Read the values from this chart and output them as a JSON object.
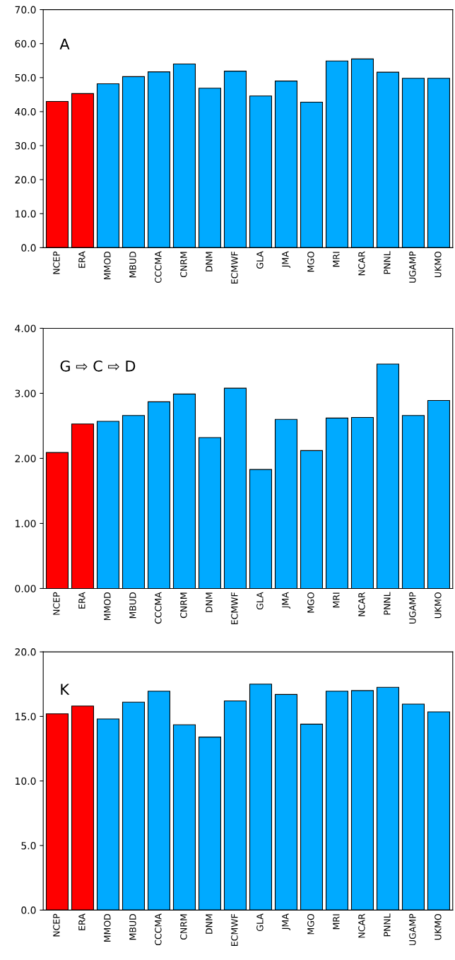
{
  "chart_data": [
    {
      "type": "bar",
      "categories": [
        "NCEP",
        "ERA",
        "MMOD",
        "MBUD",
        "CCCMA",
        "CNRM",
        "DNM",
        "ECMWF",
        "GLA",
        "JMA",
        "MGO",
        "MRI",
        "NCAR",
        "PNNL",
        "UGAMP",
        "UKMO"
      ],
      "values": [
        43.0,
        45.3,
        48.2,
        50.3,
        51.7,
        54.0,
        46.9,
        51.9,
        44.6,
        49.0,
        42.8,
        54.9,
        55.5,
        51.6,
        49.8,
        49.8
      ],
      "colors": [
        "#ff0000",
        "#ff0000",
        "#00aaff",
        "#00aaff",
        "#00aaff",
        "#00aaff",
        "#00aaff",
        "#00aaff",
        "#00aaff",
        "#00aaff",
        "#00aaff",
        "#00aaff",
        "#00aaff",
        "#00aaff",
        "#00aaff",
        "#00aaff"
      ],
      "ylim": [
        0,
        70
      ],
      "yticks": [
        {
          "value": 0,
          "label": "0.0"
        },
        {
          "value": 10,
          "label": "10.0"
        },
        {
          "value": 20,
          "label": "20.0"
        },
        {
          "value": 30,
          "label": "30.0"
        },
        {
          "value": 40,
          "label": "40.0"
        },
        {
          "value": 50,
          "label": "50.0"
        },
        {
          "value": 60,
          "label": "60.0"
        },
        {
          "value": 70,
          "label": "70.0"
        }
      ],
      "annotations": [
        "A"
      ],
      "grid": false
    },
    {
      "type": "bar",
      "categories": [
        "NCEP",
        "ERA",
        "MMOD",
        "MBUD",
        "CCCMA",
        "CNRM",
        "DNM",
        "ECMWF",
        "GLA",
        "JMA",
        "MGO",
        "MRI",
        "NCAR",
        "PNNL",
        "UGAMP",
        "UKMO"
      ],
      "values": [
        2.09,
        2.53,
        2.57,
        2.66,
        2.87,
        2.99,
        2.32,
        3.08,
        1.83,
        2.6,
        2.12,
        2.62,
        2.63,
        3.45,
        2.66,
        2.89
      ],
      "colors": [
        "#ff0000",
        "#ff0000",
        "#00aaff",
        "#00aaff",
        "#00aaff",
        "#00aaff",
        "#00aaff",
        "#00aaff",
        "#00aaff",
        "#00aaff",
        "#00aaff",
        "#00aaff",
        "#00aaff",
        "#00aaff",
        "#00aaff",
        "#00aaff"
      ],
      "ylim": [
        0,
        4
      ],
      "yticks": [
        {
          "value": 0,
          "label": "0.00"
        },
        {
          "value": 1,
          "label": "1.00"
        },
        {
          "value": 2,
          "label": "2.00"
        },
        {
          "value": 3,
          "label": "3.00"
        },
        {
          "value": 4,
          "label": "4.00"
        }
      ],
      "annotations": [
        "G ⇨ C ⇨ D"
      ],
      "grid": false
    },
    {
      "type": "bar",
      "categories": [
        "NCEP",
        "ERA",
        "MMOD",
        "MBUD",
        "CCCMA",
        "CNRM",
        "DNM",
        "ECMWF",
        "GLA",
        "JMA",
        "MGO",
        "MRI",
        "NCAR",
        "PNNL",
        "UGAMP",
        "UKMO"
      ],
      "values": [
        15.2,
        15.8,
        14.8,
        16.1,
        16.95,
        14.35,
        13.4,
        16.2,
        17.5,
        16.7,
        14.4,
        16.95,
        17.0,
        17.25,
        15.95,
        15.35
      ],
      "colors": [
        "#ff0000",
        "#ff0000",
        "#00aaff",
        "#00aaff",
        "#00aaff",
        "#00aaff",
        "#00aaff",
        "#00aaff",
        "#00aaff",
        "#00aaff",
        "#00aaff",
        "#00aaff",
        "#00aaff",
        "#00aaff",
        "#00aaff",
        "#00aaff"
      ],
      "ylim": [
        0,
        20
      ],
      "yticks": [
        {
          "value": 0,
          "label": "0.0"
        },
        {
          "value": 5,
          "label": "5.0"
        },
        {
          "value": 10,
          "label": "10.0"
        },
        {
          "value": 15,
          "label": "15.0"
        },
        {
          "value": 20,
          "label": "20.0"
        }
      ],
      "annotations": [
        "K"
      ],
      "grid": false
    }
  ]
}
